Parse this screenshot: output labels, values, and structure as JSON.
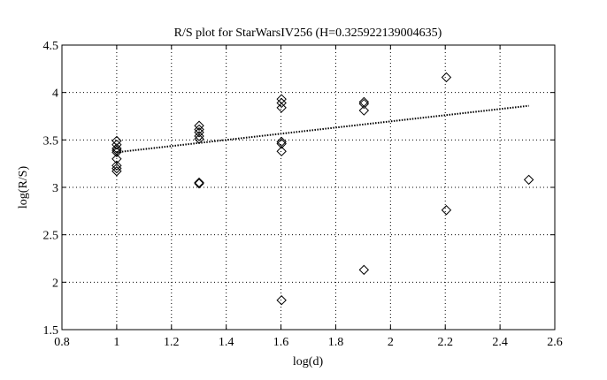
{
  "chart_data": {
    "type": "scatter",
    "title": "R/S plot for StarWarsIV256 (H=0.325922139004635)",
    "xlabel": "log(d)",
    "ylabel": "log(R/S)",
    "xlim": [
      0.8,
      2.6
    ],
    "ylim": [
      1.5,
      4.5
    ],
    "xticks": [
      "0.8",
      "1",
      "1.2",
      "1.4",
      "1.6",
      "1.8",
      "2",
      "2.2",
      "2.4",
      "2.6"
    ],
    "yticks": [
      "1.5",
      "2",
      "2.5",
      "3",
      "3.5",
      "4",
      "4.5"
    ],
    "grid": true,
    "marker": "diamond",
    "points": [
      {
        "x": 1.0,
        "y": 3.49
      },
      {
        "x": 1.0,
        "y": 3.45
      },
      {
        "x": 1.0,
        "y": 3.41
      },
      {
        "x": 1.0,
        "y": 3.39
      },
      {
        "x": 1.0,
        "y": 3.37
      },
      {
        "x": 1.0,
        "y": 3.3
      },
      {
        "x": 1.0,
        "y": 3.23
      },
      {
        "x": 1.0,
        "y": 3.2
      },
      {
        "x": 1.0,
        "y": 3.17
      },
      {
        "x": 1.301,
        "y": 3.65
      },
      {
        "x": 1.301,
        "y": 3.61
      },
      {
        "x": 1.301,
        "y": 3.58
      },
      {
        "x": 1.301,
        "y": 3.54
      },
      {
        "x": 1.301,
        "y": 3.51
      },
      {
        "x": 1.301,
        "y": 3.05
      },
      {
        "x": 1.301,
        "y": 3.04
      },
      {
        "x": 1.602,
        "y": 3.93
      },
      {
        "x": 1.602,
        "y": 3.89
      },
      {
        "x": 1.602,
        "y": 3.84
      },
      {
        "x": 1.602,
        "y": 3.48
      },
      {
        "x": 1.602,
        "y": 3.46
      },
      {
        "x": 1.602,
        "y": 3.38
      },
      {
        "x": 1.602,
        "y": 1.81
      },
      {
        "x": 1.903,
        "y": 3.9
      },
      {
        "x": 1.903,
        "y": 3.88
      },
      {
        "x": 1.903,
        "y": 3.81
      },
      {
        "x": 1.903,
        "y": 2.13
      },
      {
        "x": 2.204,
        "y": 4.16
      },
      {
        "x": 2.204,
        "y": 2.76
      },
      {
        "x": 2.505,
        "y": 3.08
      }
    ],
    "fit_line": {
      "style": "dotted",
      "x": [
        1.0,
        2.505
      ],
      "y": [
        3.37,
        3.86
      ]
    }
  }
}
